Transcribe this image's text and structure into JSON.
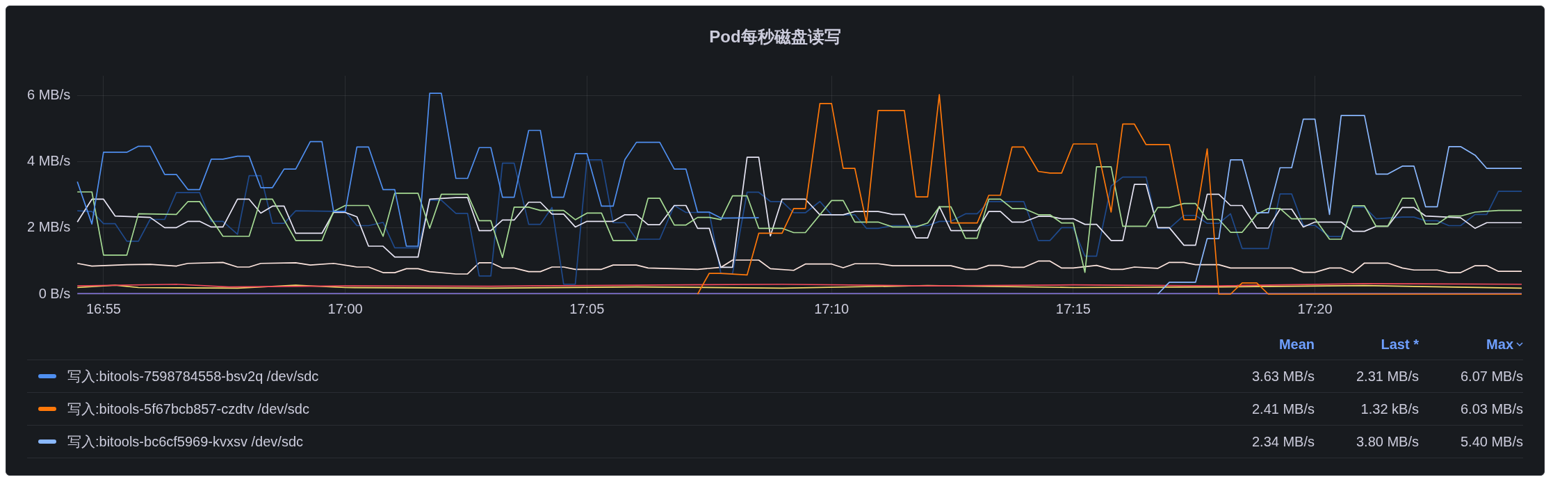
{
  "chart_data": {
    "type": "line",
    "title": "Pod每秒磁盘读写",
    "xlim": [
      16.908,
      17.404
    ],
    "xticks": [
      {
        "value": 16.917,
        "label": "16:55"
      },
      {
        "value": 17.0,
        "label": "17:00"
      },
      {
        "value": 17.083,
        "label": "17:05"
      },
      {
        "value": 17.167,
        "label": "17:10"
      },
      {
        "value": 17.25,
        "label": "17:15"
      },
      {
        "value": 17.333,
        "label": "17:20"
      }
    ],
    "ylim": [
      0,
      6.6
    ],
    "yticks": [
      {
        "value": 0,
        "label": "0 B/s"
      },
      {
        "value": 2,
        "label": "2 MB/s"
      },
      {
        "value": 4,
        "label": "4 MB/s"
      },
      {
        "value": 6,
        "label": "6 MB/s"
      }
    ],
    "grid": true,
    "legend": "bottom",
    "annotations": [
      "Mean",
      "Last *",
      "Max",
      "3.63 MB/s",
      "2.31 MB/s",
      "6.07 MB/s",
      "2.41 MB/s",
      "1.32 kB/s",
      "6.03 MB/s",
      "2.34 MB/s",
      "3.80 MB/s",
      "5.40 MB/s"
    ],
    "series": [
      {
        "name": "写入:bitools-7598784558-bsv2q /dev/sdc",
        "color": "#4f8ff0",
        "x": [
          16.908,
          16.913,
          16.917,
          16.925,
          16.929,
          16.933,
          16.938,
          16.942,
          16.946,
          16.95,
          16.954,
          16.958,
          16.963,
          16.967,
          16.971,
          16.975,
          16.979,
          16.983,
          16.988,
          16.992,
          16.996,
          17.0,
          17.004,
          17.008,
          17.013,
          17.017,
          17.021,
          17.025,
          17.029,
          17.033,
          17.038,
          17.042,
          17.046,
          17.05,
          17.054,
          17.058,
          17.063,
          17.067,
          17.071,
          17.075,
          17.079,
          17.083,
          17.088,
          17.092,
          17.096,
          17.1,
          17.108,
          17.113,
          17.117,
          17.121,
          17.125,
          17.129,
          17.142
        ],
        "values": [
          3.4,
          2.12,
          4.29,
          4.29,
          4.47,
          4.47,
          3.62,
          3.62,
          3.16,
          3.16,
          4.08,
          4.08,
          4.17,
          4.17,
          3.22,
          3.22,
          3.78,
          3.78,
          4.61,
          4.61,
          2.5,
          2.5,
          4.45,
          4.45,
          3.16,
          3.16,
          1.45,
          1.45,
          6.07,
          6.07,
          3.5,
          3.5,
          4.43,
          4.43,
          2.93,
          2.93,
          4.95,
          4.95,
          2.93,
          2.93,
          4.25,
          4.25,
          2.66,
          2.66,
          4.06,
          4.59,
          4.59,
          3.78,
          3.78,
          2.48,
          2.48,
          2.3,
          2.31
        ]
      },
      {
        "name": "写入:bitools-5f67bcb857-czdtv /dev/sdc",
        "color": "#ff780a",
        "x": [
          17.121,
          17.125,
          17.129,
          17.138,
          17.142,
          17.15,
          17.154,
          17.158,
          17.163,
          17.167,
          17.171,
          17.175,
          17.179,
          17.183,
          17.192,
          17.196,
          17.2,
          17.204,
          17.208,
          17.217,
          17.221,
          17.225,
          17.229,
          17.233,
          17.238,
          17.242,
          17.246,
          17.25,
          17.258,
          17.263,
          17.267,
          17.271,
          17.275,
          17.283,
          17.288,
          17.292,
          17.296,
          17.3,
          17.304,
          17.308,
          17.313,
          17.317,
          17.404
        ],
        "values": [
          0,
          0.63,
          0.63,
          0.58,
          1.84,
          1.84,
          2.59,
          2.59,
          5.76,
          5.76,
          3.8,
          3.8,
          2.15,
          5.55,
          5.55,
          2.94,
          2.94,
          6.03,
          2.15,
          2.15,
          2.99,
          2.99,
          4.45,
          4.45,
          3.71,
          3.66,
          3.66,
          4.54,
          4.54,
          2.48,
          5.14,
          5.14,
          4.52,
          4.52,
          2.25,
          2.25,
          4.39,
          0,
          0,
          0.34,
          0.34,
          0,
          0
        ]
      },
      {
        "name": "写入:bitools-bc6cf5969-kvxsv /dev/sdc",
        "color": "#8ab8ff",
        "x": [
          17.279,
          17.283,
          17.292,
          17.296,
          17.3,
          17.304,
          17.308,
          17.313,
          17.317,
          17.321,
          17.325,
          17.329,
          17.333,
          17.338,
          17.342,
          17.35,
          17.354,
          17.358,
          17.363,
          17.367,
          17.371,
          17.375,
          17.379,
          17.383,
          17.388,
          17.392,
          17.404
        ],
        "values": [
          0,
          0.36,
          0.36,
          1.68,
          1.68,
          4.06,
          4.06,
          2.46,
          2.46,
          3.82,
          3.82,
          5.29,
          5.29,
          2.41,
          5.4,
          5.4,
          3.63,
          3.63,
          3.87,
          3.87,
          2.64,
          2.64,
          4.46,
          4.46,
          4.2,
          3.8,
          3.8
        ]
      },
      {
        "color": "#a6db94",
        "x": [
          16.908,
          16.913,
          16.917,
          16.925,
          16.929,
          16.942,
          16.946,
          16.95,
          16.958,
          16.967,
          16.971,
          16.975,
          16.983,
          16.992,
          16.996,
          17.0,
          17.008,
          17.013,
          17.017,
          17.025,
          17.029,
          17.033,
          17.042,
          17.046,
          17.05,
          17.054,
          17.058,
          17.063,
          17.067,
          17.075,
          17.079,
          17.083,
          17.088,
          17.092,
          17.1,
          17.104,
          17.108,
          17.113,
          17.117,
          17.121,
          17.125,
          17.129,
          17.133,
          17.138,
          17.142,
          17.15,
          17.154,
          17.158,
          17.167,
          17.171,
          17.175,
          17.183,
          17.188,
          17.196,
          17.2,
          17.204,
          17.208,
          17.213,
          17.217,
          17.221,
          17.225,
          17.229,
          17.233,
          17.238,
          17.242,
          17.246,
          17.25,
          17.254,
          17.258,
          17.263,
          17.267,
          17.275,
          17.279,
          17.283,
          17.288,
          17.292,
          17.296,
          17.3,
          17.304,
          17.308,
          17.313,
          17.317,
          17.321,
          17.325,
          17.333,
          17.338,
          17.342,
          17.346,
          17.35,
          17.354,
          17.358,
          17.363,
          17.367,
          17.371,
          17.375,
          17.379,
          17.383,
          17.388,
          17.396,
          17.404
        ],
        "values": [
          3.09,
          3.09,
          1.18,
          1.18,
          2.43,
          2.41,
          2.8,
          2.8,
          1.75,
          1.75,
          2.87,
          2.87,
          1.62,
          1.62,
          2.5,
          2.68,
          2.68,
          1.75,
          3.05,
          3.05,
          1.99,
          3.02,
          3.02,
          2.22,
          2.22,
          1.11,
          2.63,
          2.63,
          2.53,
          2.53,
          2.25,
          2.45,
          2.45,
          1.62,
          1.62,
          2.9,
          2.9,
          2.09,
          2.09,
          2.32,
          2.32,
          2.25,
          2.97,
          2.97,
          1.99,
          1.99,
          1.86,
          1.86,
          2.83,
          2.83,
          2.18,
          2.18,
          2.03,
          2.03,
          2.15,
          2.64,
          2.64,
          1.69,
          1.69,
          2.87,
          2.87,
          2.59,
          2.59,
          2.4,
          2.4,
          2.15,
          2.15,
          0.66,
          3.85,
          3.85,
          2.05,
          2.05,
          2.62,
          2.62,
          2.74,
          2.74,
          2.26,
          2.26,
          1.87,
          1.87,
          2.41,
          2.59,
          2.59,
          2.28,
          2.28,
          1.66,
          1.66,
          2.67,
          2.67,
          2.05,
          2.05,
          2.9,
          2.9,
          2.12,
          2.12,
          2.36,
          2.36,
          2.48,
          2.53,
          2.53
        ]
      },
      {
        "color": "#e8e6f5",
        "x": [
          16.908,
          16.913,
          16.917,
          16.921,
          16.933,
          16.938,
          16.942,
          16.946,
          16.95,
          16.954,
          16.958,
          16.963,
          16.967,
          16.971,
          16.975,
          16.979,
          16.983,
          16.992,
          16.996,
          17.0,
          17.004,
          17.008,
          17.013,
          17.017,
          17.025,
          17.029,
          17.038,
          17.042,
          17.046,
          17.05,
          17.054,
          17.058,
          17.063,
          17.067,
          17.071,
          17.075,
          17.079,
          17.083,
          17.092,
          17.096,
          17.1,
          17.104,
          17.108,
          17.113,
          17.117,
          17.121,
          17.125,
          17.129,
          17.133,
          17.138,
          17.142,
          17.146,
          17.15,
          17.158,
          17.163,
          17.171,
          17.175,
          17.183,
          17.188,
          17.192,
          17.196,
          17.2,
          17.204,
          17.208,
          17.217,
          17.221,
          17.225,
          17.229,
          17.233,
          17.238,
          17.242,
          17.246,
          17.25,
          17.254,
          17.258,
          17.263,
          17.267,
          17.271,
          17.275,
          17.279,
          17.283,
          17.288,
          17.292,
          17.296,
          17.3,
          17.304,
          17.308,
          17.313,
          17.317,
          17.321,
          17.325,
          17.329,
          17.333,
          17.342,
          17.346,
          17.35,
          17.354,
          17.358,
          17.363,
          17.367,
          17.371,
          17.383,
          17.388,
          17.392,
          17.404
        ],
        "values": [
          2.18,
          2.87,
          2.87,
          2.36,
          2.32,
          2.01,
          2.01,
          2.2,
          2.2,
          2.03,
          2.03,
          2.87,
          2.87,
          2.45,
          2.66,
          2.66,
          1.84,
          1.84,
          2.47,
          2.47,
          2.34,
          1.45,
          1.45,
          1.12,
          1.12,
          2.87,
          2.92,
          2.92,
          1.92,
          1.92,
          2.24,
          2.24,
          2.78,
          2.78,
          2.42,
          2.42,
          2.03,
          2.2,
          2.2,
          2.4,
          2.4,
          2.1,
          2.1,
          2.68,
          2.68,
          1.99,
          1.99,
          0.81,
          0.81,
          4.14,
          4.14,
          1.76,
          2.87,
          2.87,
          2.4,
          2.4,
          2.5,
          2.5,
          2.41,
          2.41,
          1.7,
          1.7,
          2.65,
          1.92,
          1.92,
          2.5,
          2.5,
          2.18,
          2.18,
          2.35,
          2.35,
          2.28,
          2.28,
          2.11,
          2.11,
          1.62,
          1.62,
          3.32,
          3.32,
          2.01,
          2.01,
          1.48,
          1.48,
          3.02,
          3.02,
          2.68,
          2.68,
          2.0,
          2.0,
          2.57,
          2.57,
          2.03,
          2.18,
          2.18,
          1.9,
          1.9,
          2.05,
          2.05,
          2.62,
          2.62,
          2.36,
          2.31,
          1.99,
          2.16,
          2.16
        ]
      },
      {
        "color": "#1f4a8c",
        "x": [
          16.908,
          16.913,
          16.917,
          16.921,
          16.925,
          16.929,
          16.933,
          16.938,
          16.942,
          16.95,
          16.954,
          16.958,
          16.963,
          16.967,
          16.971,
          16.975,
          16.979,
          16.983,
          17.0,
          17.004,
          17.008,
          17.013,
          17.017,
          17.025,
          17.029,
          17.033,
          17.038,
          17.042,
          17.046,
          17.05,
          17.054,
          17.058,
          17.063,
          17.067,
          17.071,
          17.075,
          17.079,
          17.083,
          17.088,
          17.092,
          17.096,
          17.1,
          17.108,
          17.113,
          17.117,
          17.125,
          17.129,
          17.133,
          17.138,
          17.142,
          17.146,
          17.15,
          17.154,
          17.158,
          17.163,
          17.167,
          17.175,
          17.179,
          17.183,
          17.188,
          17.2,
          17.204,
          17.208,
          17.213,
          17.217,
          17.221,
          17.233,
          17.238,
          17.242,
          17.246,
          17.25,
          17.254,
          17.258,
          17.263,
          17.267,
          17.275,
          17.279,
          17.283,
          17.288,
          17.292,
          17.296,
          17.3,
          17.304,
          17.308,
          17.317,
          17.321,
          17.325,
          17.329,
          17.333,
          17.338,
          17.342,
          17.346,
          17.35,
          17.354,
          17.363,
          17.367,
          17.371,
          17.375,
          17.379,
          17.383,
          17.388,
          17.392,
          17.396,
          17.404
        ],
        "values": [
          2.52,
          2.5,
          2.13,
          2.13,
          1.6,
          1.6,
          2.26,
          2.26,
          3.07,
          3.07,
          2.2,
          2.2,
          1.81,
          3.58,
          3.58,
          2.14,
          2.14,
          2.52,
          2.5,
          2.07,
          2.07,
          2.17,
          1.4,
          1.4,
          2.84,
          2.84,
          2.44,
          2.44,
          0.55,
          0.55,
          3.96,
          3.96,
          2.11,
          2.11,
          2.62,
          0.3,
          0.3,
          4.06,
          4.06,
          2.16,
          2.16,
          1.66,
          1.66,
          2.68,
          2.47,
          2.47,
          0.62,
          0.62,
          3.08,
          3.08,
          2.8,
          2.8,
          2.46,
          2.46,
          2.8,
          2.4,
          2.4,
          1.99,
          1.99,
          2.07,
          2.07,
          2.2,
          2.2,
          2.43,
          2.43,
          2.8,
          2.8,
          1.62,
          1.62,
          2.01,
          2.01,
          1.15,
          1.15,
          3.27,
          3.54,
          3.54,
          1.99,
          1.99,
          2.38,
          2.38,
          2.14,
          2.14,
          2.43,
          1.38,
          1.38,
          3.03,
          3.03,
          2.08,
          2.08,
          1.74,
          1.74,
          2.63,
          2.63,
          2.28,
          2.33,
          2.33,
          2.22,
          2.22,
          2.07,
          2.07,
          2.41,
          2.41,
          3.11,
          3.11
        ]
      },
      {
        "color": "#fde5de",
        "x": [
          16.908,
          16.913,
          16.925,
          16.933,
          16.942,
          16.946,
          16.958,
          16.963,
          16.967,
          16.971,
          16.983,
          16.988,
          16.996,
          17.004,
          17.008,
          17.013,
          17.017,
          17.021,
          17.025,
          17.029,
          17.038,
          17.042,
          17.046,
          17.05,
          17.054,
          17.058,
          17.063,
          17.067,
          17.071,
          17.075,
          17.079,
          17.088,
          17.092,
          17.1,
          17.104,
          17.121,
          17.129,
          17.133,
          17.142,
          17.146,
          17.154,
          17.158,
          17.167,
          17.171,
          17.175,
          17.183,
          17.188,
          17.208,
          17.213,
          17.217,
          17.221,
          17.225,
          17.229,
          17.233,
          17.238,
          17.242,
          17.246,
          17.25,
          17.258,
          17.263,
          17.267,
          17.271,
          17.279,
          17.283,
          17.288,
          17.292,
          17.3,
          17.304,
          17.325,
          17.329,
          17.333,
          17.338,
          17.342,
          17.346,
          17.35,
          17.358,
          17.363,
          17.367,
          17.375,
          17.379,
          17.383,
          17.388,
          17.392,
          17.396,
          17.404
        ],
        "values": [
          0.93,
          0.85,
          0.89,
          0.9,
          0.85,
          0.93,
          0.96,
          0.82,
          0.82,
          0.93,
          0.95,
          0.88,
          0.93,
          0.82,
          0.82,
          0.65,
          0.65,
          0.77,
          0.77,
          0.68,
          0.61,
          0.61,
          0.95,
          0.95,
          0.79,
          0.79,
          0.68,
          0.68,
          0.82,
          0.82,
          0.75,
          0.75,
          0.88,
          0.88,
          0.79,
          0.75,
          0.81,
          1.03,
          1.03,
          0.77,
          0.72,
          0.91,
          0.91,
          0.8,
          0.92,
          0.92,
          0.86,
          0.86,
          0.75,
          0.75,
          0.87,
          0.87,
          0.81,
          0.81,
          1.0,
          1.0,
          0.79,
          0.79,
          0.87,
          0.75,
          0.75,
          0.82,
          0.78,
          0.96,
          0.96,
          0.89,
          0.89,
          0.79,
          0.79,
          0.66,
          0.66,
          0.79,
          0.79,
          0.65,
          0.94,
          0.94,
          0.79,
          0.73,
          0.73,
          0.65,
          0.65,
          0.86,
          0.86,
          0.69,
          0.69
        ]
      },
      {
        "color": "#f2495c",
        "x": [
          16.908,
          16.942,
          16.96,
          17.0,
          17.05,
          17.1,
          17.15,
          17.2,
          17.25,
          17.3,
          17.35,
          17.404
        ],
        "values": [
          0.25,
          0.3,
          0.22,
          0.25,
          0.24,
          0.27,
          0.3,
          0.25,
          0.28,
          0.25,
          0.32,
          0.3
        ]
      },
      {
        "color": "#fade6a",
        "x": [
          16.908,
          16.921,
          16.929,
          16.963,
          16.983,
          17.0,
          17.05,
          17.1,
          17.15,
          17.2,
          17.25,
          17.3,
          17.35,
          17.404
        ],
        "values": [
          0.2,
          0.27,
          0.2,
          0.18,
          0.27,
          0.2,
          0.18,
          0.22,
          0.18,
          0.26,
          0.2,
          0.22,
          0.26,
          0.18
        ]
      },
      {
        "color": "#7a6ec8",
        "x": [
          16.908,
          17.404
        ],
        "values": [
          0.02,
          0.02
        ]
      }
    ]
  }
}
